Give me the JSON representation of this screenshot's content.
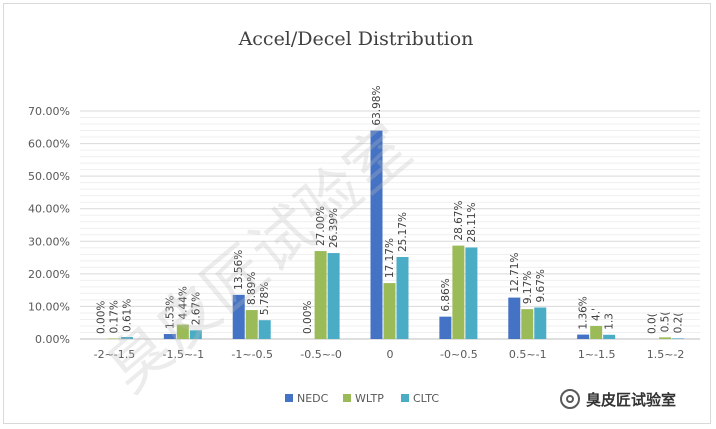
{
  "chart_data": {
    "type": "bar",
    "title": "Accel/Decel Distribution",
    "xlabel": "",
    "ylabel": "",
    "categories": [
      "-2~-1.5",
      "-1.5~-1",
      "-1~-0.5",
      "-0.5~-0",
      "0",
      "-0~0.5",
      "0.5~-1",
      "1~-1.5",
      "1.5~-2"
    ],
    "ylim": [
      0,
      70
    ],
    "y_ticks": [
      "0.00%",
      "10.00%",
      "20.00%",
      "30.00%",
      "40.00%",
      "50.00%",
      "60.00%",
      "70.00%"
    ],
    "y_tick_values": [
      0,
      10,
      20,
      30,
      40,
      50,
      60,
      70
    ],
    "grid": true,
    "legend_position": "bottom",
    "series": [
      {
        "name": "NEDC",
        "color": "#4472c4",
        "values": [
          0.0,
          1.53,
          13.56,
          0.0,
          63.98,
          6.86,
          12.71,
          1.36,
          0.0
        ],
        "labels": [
          "0.00%",
          "1.53%",
          "13.56%",
          "0.00%",
          "63.98%",
          "6.86%",
          "12.71%",
          "1.36%",
          "0.0("
        ]
      },
      {
        "name": "WLTP",
        "color": "#9bbb59",
        "values": [
          0.17,
          4.44,
          8.89,
          27.0,
          17.17,
          28.67,
          9.17,
          4.0,
          0.5
        ],
        "labels": [
          "0.17%",
          "4.44%",
          "8.89%",
          "27.00%",
          "17.17%",
          "28.67%",
          "9.17%",
          "4.'",
          "0.5("
        ]
      },
      {
        "name": "CLTC",
        "color": "#4bacc6",
        "values": [
          0.61,
          2.67,
          5.78,
          26.39,
          25.17,
          28.11,
          9.67,
          1.3,
          0.2
        ],
        "labels": [
          "0.61%",
          "2.67%",
          "5.78%",
          "26.39%",
          "25.17%",
          "28.11%",
          "9.67%",
          "1.3",
          "0.2("
        ]
      }
    ]
  },
  "watermark": {
    "text": "臭皮匠试验室"
  },
  "badge": {
    "icon": "wechat-channel-icon",
    "text": "臭皮匠试验室"
  }
}
